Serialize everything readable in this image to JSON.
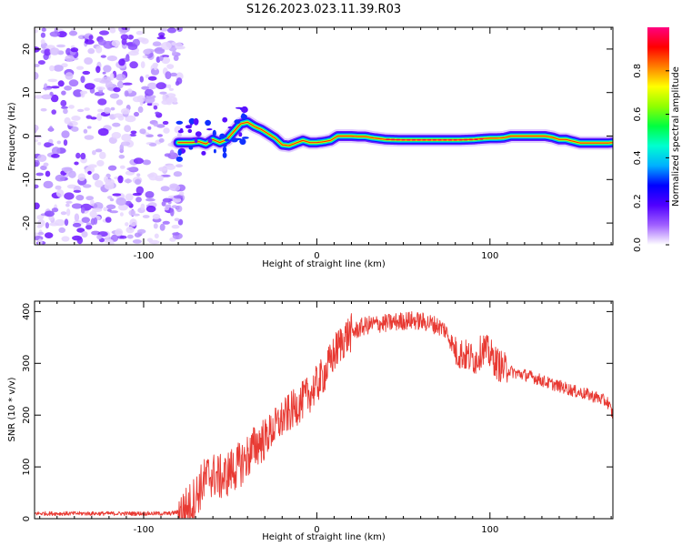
{
  "figure": {
    "title": "S126.2023.023.11.39.R03"
  },
  "chart_data": [
    {
      "type": "heatmap",
      "xlabel": "Height of straight line (km)",
      "ylabel": "Frequency (Hz)",
      "xlim": [
        -163,
        171
      ],
      "ylim": [
        -25,
        25
      ],
      "xticks": [
        -100,
        0,
        100
      ],
      "yticks": [
        -20,
        -10,
        0,
        10,
        20
      ],
      "grid": false,
      "noise_region_x": [
        -163,
        -80
      ],
      "ridge": {
        "x": [
          -80,
          -72,
          -68,
          -64,
          -60,
          -56,
          -52,
          -48,
          -44,
          -40,
          -36,
          -32,
          -28,
          -24,
          -20,
          -16,
          -12,
          -8,
          -4,
          0,
          4,
          8,
          12,
          16,
          20,
          24,
          28,
          32,
          40,
          50,
          60,
          70,
          80,
          90,
          96,
          100,
          104,
          108,
          112,
          116,
          120,
          124,
          128,
          132,
          136,
          140,
          144,
          148,
          152,
          156,
          160,
          164,
          168,
          171
        ],
        "y": [
          -1.5,
          -1.5,
          -1.3,
          -1.8,
          -0.8,
          -1.5,
          -0.8,
          1.0,
          2.8,
          3.2,
          2.2,
          1.5,
          0.5,
          -0.5,
          -2.0,
          -2.2,
          -1.6,
          -1.0,
          -1.5,
          -1.5,
          -1.3,
          -1.0,
          0.0,
          0.0,
          0.0,
          -0.1,
          -0.1,
          -0.4,
          -0.8,
          -0.9,
          -0.9,
          -0.9,
          -0.9,
          -0.8,
          -0.6,
          -0.5,
          -0.5,
          -0.4,
          0.0,
          0.0,
          0.0,
          0.0,
          0.0,
          0.0,
          -0.3,
          -0.8,
          -0.8,
          -1.2,
          -1.6,
          -1.6,
          -1.6,
          -1.6,
          -1.6,
          -1.5
        ]
      },
      "colorbar": {
        "label": "Normalized spectral amplitude",
        "range": [
          0,
          1
        ],
        "ticks": [
          0.0,
          0.2,
          0.4,
          0.6,
          0.8
        ],
        "colormap": [
          "#ffffff",
          "#a060ff",
          "#5000ff",
          "#0000ff",
          "#00b0ff",
          "#00ffd0",
          "#00ff40",
          "#90ff00",
          "#ffff00",
          "#ff8000",
          "#ff0000",
          "#ff0080"
        ]
      }
    },
    {
      "type": "line",
      "xlabel": "Height of straight line (km)",
      "ylabel": "SNR (10 * v/v)",
      "xlim": [
        -163,
        171
      ],
      "ylim": [
        0,
        420
      ],
      "xticks": [
        -100,
        0,
        100
      ],
      "yticks": [
        0,
        100,
        200,
        300,
        400
      ],
      "grid": false,
      "color": "#e83a33",
      "series": [
        {
          "x": [
            -163,
            -140,
            -120,
            -100,
            -85,
            -78,
            -74,
            -70,
            -66,
            -62,
            -58,
            -54,
            -50,
            -46,
            -42,
            -38,
            -34,
            -30,
            -26,
            -22,
            -18,
            -14,
            -10,
            -6,
            -2,
            2,
            6,
            10,
            14,
            18,
            22,
            26,
            30,
            34,
            38,
            42,
            46,
            50,
            54,
            58,
            62,
            66,
            70,
            74,
            78,
            80,
            84,
            88,
            92,
            96,
            100,
            104,
            108,
            112,
            116,
            120,
            126,
            132,
            138,
            144,
            150,
            156,
            162,
            168,
            171
          ],
          "values": [
            10,
            10,
            10,
            10,
            10,
            14,
            22,
            42,
            68,
            85,
            82,
            78,
            92,
            100,
            112,
            128,
            146,
            155,
            170,
            185,
            198,
            210,
            222,
            235,
            250,
            268,
            290,
            318,
            340,
            355,
            362,
            370,
            374,
            376,
            377,
            378,
            380,
            382,
            383,
            382,
            380,
            377,
            372,
            365,
            340,
            322,
            318,
            312,
            308,
            330,
            318,
            300,
            290,
            285,
            280,
            278,
            272,
            264,
            258,
            252,
            245,
            240,
            234,
            225,
            200
          ]
        }
      ]
    }
  ]
}
